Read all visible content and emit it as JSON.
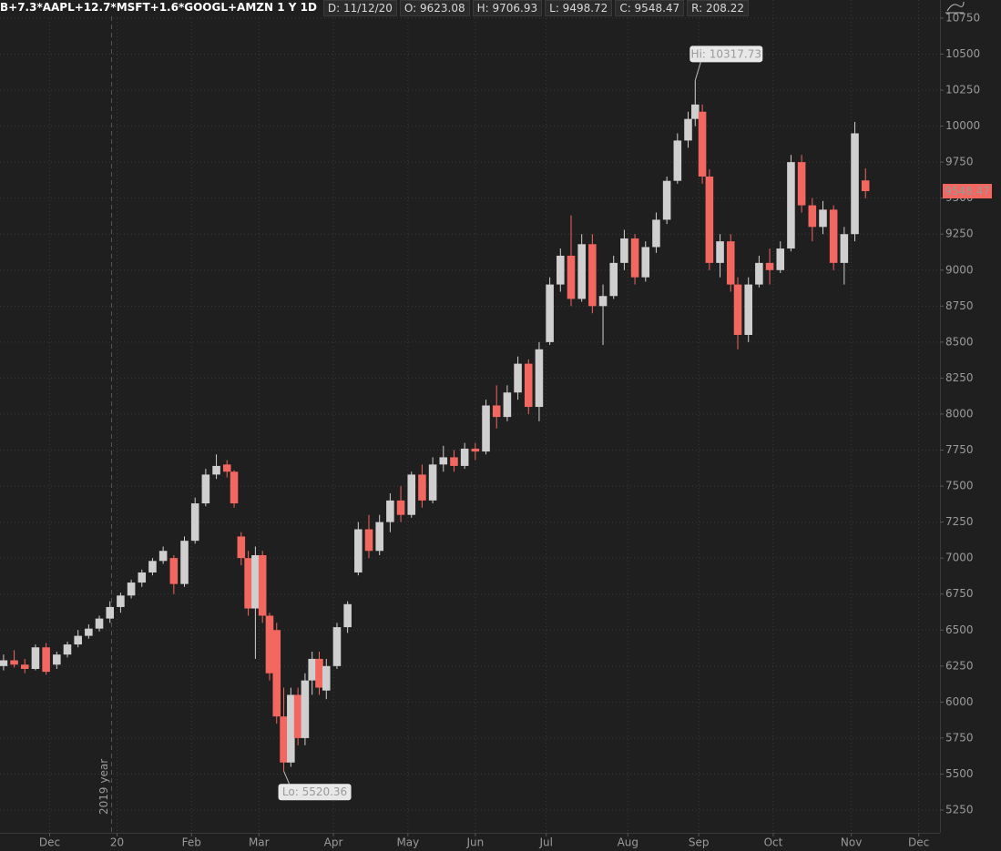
{
  "header": {
    "symbol": "B+7.3*AAPL+12.7*MSFT+1.6*GOOGL+AMZN 1 Y 1D",
    "date": "D: 11/12/20",
    "open": "O: 9623.08",
    "high": "H: 9706.93",
    "low": "L: 9498.72",
    "close": "C: 9548.47",
    "range": "R: 208.22"
  },
  "chart_data": {
    "type": "candlestick",
    "x": [
      0,
      3,
      6,
      9,
      12,
      15,
      18,
      21,
      24,
      27,
      30,
      33,
      36,
      39,
      42,
      45,
      48,
      51,
      54,
      57,
      60,
      63,
      65,
      67,
      69,
      71,
      73,
      75,
      77,
      79,
      81,
      83,
      85,
      87,
      89,
      91,
      94,
      97,
      100,
      103,
      106,
      109,
      112,
      115,
      118,
      121,
      124,
      127,
      130,
      133,
      136,
      139,
      142,
      145,
      148,
      151,
      154,
      157,
      160,
      163,
      166,
      169,
      172,
      175,
      178,
      181,
      184,
      187,
      190,
      193,
      195,
      197,
      199,
      202,
      205,
      207,
      210,
      213,
      216,
      219,
      222,
      225,
      228,
      231,
      234,
      237,
      240,
      243
    ],
    "open": [
      6250,
      6290,
      6260,
      6230,
      6380,
      6260,
      6330,
      6400,
      6460,
      6510,
      6580,
      6660,
      6740,
      6830,
      6900,
      6980,
      7000,
      6820,
      7120,
      7380,
      7580,
      7650,
      7600,
      7150,
      7000,
      6650,
      7020,
      6600,
      6500,
      5900,
      5580,
      6050,
      5750,
      6150,
      6300,
      6080,
      6250,
      6520,
      6900,
      7200,
      7050,
      7250,
      7400,
      7300,
      7580,
      7400,
      7650,
      7700,
      7640,
      7760,
      7740,
      8060,
      7980,
      8150,
      8350,
      8050,
      8500,
      8900,
      9100,
      8800,
      9180,
      8750,
      8820,
      9050,
      9220,
      8950,
      9160,
      9350,
      9620,
      9900,
      10050,
      10100,
      9650,
      9050,
      9200,
      8900,
      8550,
      8900,
      9050,
      9000,
      9150,
      9750,
      9450,
      9300,
      9420,
      9050,
      9250,
      9623.08
    ],
    "high": [
      6330,
      6360,
      6300,
      6400,
      6410,
      6350,
      6420,
      6500,
      6540,
      6600,
      6700,
      6760,
      6850,
      6920,
      7000,
      7080,
      7020,
      7150,
      7420,
      7620,
      7720,
      7680,
      7610,
      7180,
      7050,
      7080,
      7050,
      6620,
      6550,
      6100,
      6100,
      6100,
      6200,
      6350,
      6350,
      6300,
      6550,
      6700,
      7250,
      7300,
      7300,
      7450,
      7500,
      7600,
      7650,
      7700,
      7780,
      7750,
      7800,
      7800,
      8100,
      8200,
      8200,
      8400,
      8380,
      8500,
      8950,
      9150,
      9380,
      9250,
      9250,
      8900,
      9100,
      9280,
      9250,
      9200,
      9400,
      9650,
      9950,
      10100,
      10317.73,
      10150,
      9700,
      9250,
      9250,
      8950,
      8950,
      9100,
      9150,
      9200,
      9800,
      9800,
      9500,
      9480,
      9450,
      9300,
      10030,
      9706.93
    ],
    "low": [
      6220,
      6240,
      6200,
      6220,
      6190,
      6230,
      6310,
      6380,
      6440,
      6490,
      6550,
      6620,
      6720,
      6800,
      6880,
      6960,
      6750,
      6800,
      7100,
      7360,
      7550,
      7560,
      7350,
      6950,
      6600,
      6300,
      6550,
      6150,
      5850,
      5520.36,
      5550,
      5700,
      5700,
      6050,
      6050,
      6020,
      6230,
      6480,
      6880,
      7000,
      7020,
      7180,
      7250,
      7280,
      7350,
      7380,
      7600,
      7600,
      7620,
      7680,
      7720,
      7900,
      7950,
      8100,
      8000,
      7950,
      8480,
      8850,
      8750,
      8780,
      8700,
      8480,
      8800,
      9000,
      8900,
      8920,
      9120,
      9320,
      9600,
      9850,
      10000,
      9600,
      9000,
      8950,
      8850,
      8450,
      8500,
      8880,
      8900,
      8980,
      9130,
      9400,
      9200,
      9250,
      9000,
      8900,
      9200,
      9498.72
    ],
    "close": [
      6290,
      6260,
      6230,
      6380,
      6210,
      6330,
      6400,
      6460,
      6510,
      6580,
      6660,
      6740,
      6830,
      6900,
      6980,
      7050,
      6820,
      7120,
      7380,
      7580,
      7640,
      7600,
      7380,
      7000,
      6650,
      7020,
      6600,
      6200,
      5900,
      5580,
      6050,
      5750,
      6150,
      6300,
      6100,
      6250,
      6520,
      6680,
      7200,
      7050,
      7250,
      7400,
      7300,
      7580,
      7400,
      7650,
      7700,
      7640,
      7760,
      7740,
      8060,
      7980,
      8150,
      8350,
      8050,
      8450,
      8900,
      9100,
      8800,
      9180,
      8750,
      8820,
      9050,
      9220,
      8950,
      9160,
      9350,
      9620,
      9900,
      10050,
      10150,
      9650,
      9050,
      9200,
      8900,
      8550,
      8900,
      9050,
      9000,
      9150,
      9750,
      9450,
      9300,
      9420,
      9050,
      9250,
      9950,
      9548.47
    ],
    "up_color": "#cfcfcf",
    "down_color": "#f2675f",
    "xlim": [
      -1,
      264
    ],
    "xticks": [
      {
        "value": 13,
        "label": "Dec"
      },
      {
        "value": 32,
        "label": "20"
      },
      {
        "value": 53,
        "label": "Feb"
      },
      {
        "value": 72,
        "label": "Mar"
      },
      {
        "value": 93,
        "label": "Apr"
      },
      {
        "value": 114,
        "label": "May"
      },
      {
        "value": 133,
        "label": "Jun"
      },
      {
        "value": 153,
        "label": "Jul"
      },
      {
        "value": 176,
        "label": "Aug"
      },
      {
        "value": 196,
        "label": "Sep"
      },
      {
        "value": 217,
        "label": "Oct"
      },
      {
        "value": 239,
        "label": "Nov"
      },
      {
        "value": 258,
        "label": "Dec"
      }
    ],
    "ylim": [
      5092,
      10876
    ],
    "yticks": [
      5250,
      5500,
      5750,
      6000,
      6250,
      6500,
      6750,
      7000,
      7250,
      7500,
      7750,
      8000,
      8250,
      8500,
      8750,
      9000,
      9250,
      9500,
      9750,
      10000,
      10250,
      10500,
      10750
    ],
    "grid": true,
    "hi_label": "Hi: 10317.73",
    "lo_label": "Lo: 5520.36",
    "year_label": "2019 year"
  }
}
